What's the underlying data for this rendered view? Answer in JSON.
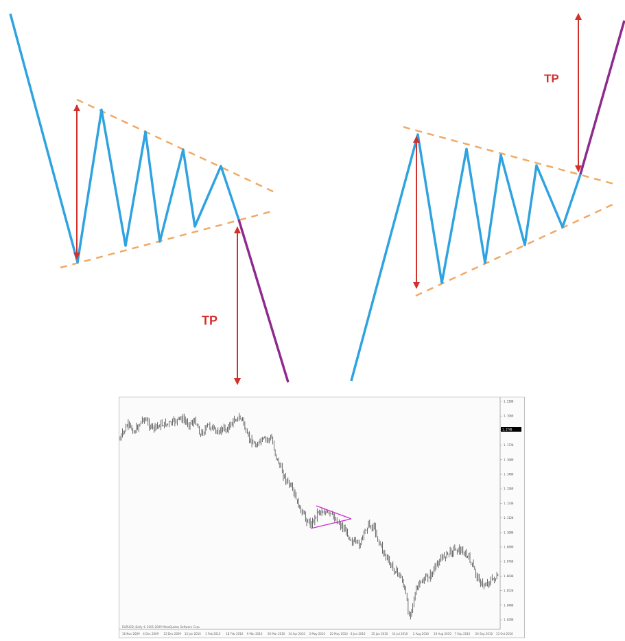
{
  "colors": {
    "price_line": "#2ea3e0",
    "breakout_line": "#8e2a8e",
    "boundary_dashed": "#f0a965",
    "target_arrow": "#d0312d",
    "tp_text": "#d0312d",
    "candles": "#2a2a2a",
    "triangle_markup": "#cc33cc",
    "current_price_label_bg": "#000000"
  },
  "left_pattern": {
    "label": "TP",
    "breakout": "down"
  },
  "right_pattern": {
    "label": "TP",
    "breakout": "up"
  },
  "price_chart": {
    "price_axis_ticks": [
      "1.2180",
      "1.1960",
      "1.1840",
      "1.1720",
      "1.1600",
      "1.1480",
      "1.1360",
      "1.1240",
      "1.1120",
      "1.1000",
      "1.0880",
      "1.0760",
      "1.0640",
      "1.0520",
      "1.0400",
      "1.0280"
    ],
    "current_price_label": "1.1740",
    "copyright": "EURUSD, Daily  © 2001-2009 MetaQuotes Software Corp.",
    "time_axis_ticks": [
      "16 Nov 2009",
      "4 Dec 2009",
      "23 Dec 2009",
      "13 Jan 2010",
      "1 Feb 2010",
      "18 Feb 2010",
      "9 Mar 2010",
      "26 Mar 2010",
      "14 Apr 2010",
      "3 May 2010",
      "20 May 2010",
      "8 Jun 2010",
      "25 Jun 2010",
      "14 Jul 2010",
      "2 Aug 2010",
      "19 Aug 2010",
      "7 Sep 2010",
      "24 Sep 2010",
      "13 Oct 2010"
    ]
  }
}
